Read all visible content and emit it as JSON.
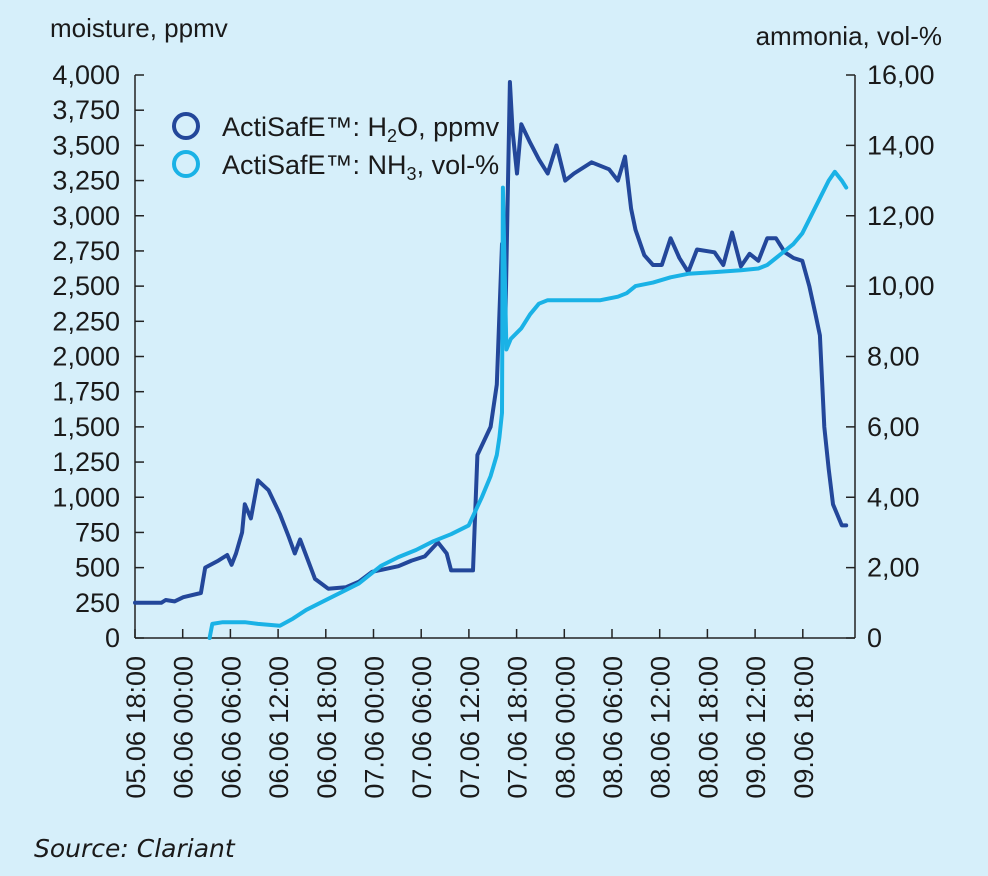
{
  "chart_data": {
    "type": "line",
    "left_axis_title": "moisture, ppmv",
    "right_axis_title": "ammonia, vol-%",
    "y_left_ticks": [
      "0",
      "250",
      "500",
      "750",
      "1,000",
      "1,250",
      "1,500",
      "1,750",
      "2,000",
      "2,250",
      "2,500",
      "2,750",
      "3,000",
      "3,250",
      "3,500",
      "3,750",
      "4,000"
    ],
    "y_right_ticks": [
      "0",
      "2,00",
      "4,00",
      "6,00",
      "8,00",
      "10,00",
      "12,00",
      "14,00",
      "16,00"
    ],
    "x_ticks": [
      "05.06 18:00",
      "06.06 00:00",
      "06.06 06:00",
      "06.06 12:00",
      "06.06 18:00",
      "07.06 00:00",
      "07.06 06:00",
      "07.06 12:00",
      "07.06 18:00",
      "08.06 00:00",
      "08.06 06:00",
      "08.06 12:00",
      "08.06 18:00",
      "09.06 12:00",
      "09.06 18:00"
    ],
    "ylim_left": [
      0,
      4000
    ],
    "ylim_right": [
      0,
      16
    ],
    "grid": false,
    "legend_position": "top-left",
    "colors": {
      "h2o": "#23479a",
      "nh3": "#1ab2e6",
      "background": "#d6effa"
    },
    "series": [
      {
        "key": "h2o",
        "legend_prefix": "ActiSafE™: H",
        "legend_sub": "2",
        "legend_suffix": "O, ppmv",
        "axis": "left",
        "points": [
          [
            0,
            250
          ],
          [
            3,
            250
          ],
          [
            3.5,
            270
          ],
          [
            4.5,
            260
          ],
          [
            5.5,
            290
          ],
          [
            7.5,
            320
          ],
          [
            8,
            500
          ],
          [
            9.5,
            550
          ],
          [
            10.5,
            590
          ],
          [
            11,
            520
          ],
          [
            11.5,
            600
          ],
          [
            12.2,
            750
          ],
          [
            12.5,
            950
          ],
          [
            13.2,
            850
          ],
          [
            14,
            1120
          ],
          [
            15.2,
            1050
          ],
          [
            16.5,
            880
          ],
          [
            17.5,
            720
          ],
          [
            18.2,
            600
          ],
          [
            18.8,
            700
          ],
          [
            20.5,
            420
          ],
          [
            22,
            350
          ],
          [
            24,
            360
          ],
          [
            25.5,
            400
          ],
          [
            27,
            470
          ],
          [
            30,
            510
          ],
          [
            31.5,
            550
          ],
          [
            33,
            580
          ],
          [
            34.5,
            680
          ],
          [
            35.5,
            600
          ],
          [
            36,
            480
          ],
          [
            38.5,
            480
          ],
          [
            39,
            1300
          ],
          [
            40.5,
            1500
          ],
          [
            41.2,
            1800
          ],
          [
            41.8,
            2800
          ],
          [
            42.2,
            2300
          ],
          [
            42.7,
            3950
          ],
          [
            43,
            3600
          ],
          [
            43.5,
            3300
          ],
          [
            44,
            3650
          ],
          [
            45,
            3520
          ],
          [
            46,
            3400
          ],
          [
            47,
            3300
          ],
          [
            48,
            3500
          ],
          [
            49,
            3250
          ],
          [
            50,
            3300
          ],
          [
            52,
            3380
          ],
          [
            54,
            3330
          ],
          [
            55,
            3250
          ],
          [
            55.8,
            3420
          ],
          [
            56.5,
            3050
          ],
          [
            57,
            2900
          ],
          [
            58,
            2720
          ],
          [
            59,
            2650
          ],
          [
            60,
            2650
          ],
          [
            61,
            2840
          ],
          [
            62,
            2700
          ],
          [
            63,
            2600
          ],
          [
            64,
            2760
          ],
          [
            66,
            2740
          ],
          [
            67,
            2650
          ],
          [
            68,
            2880
          ],
          [
            69,
            2640
          ],
          [
            70,
            2730
          ],
          [
            71,
            2680
          ],
          [
            72,
            2840
          ],
          [
            73,
            2840
          ],
          [
            74,
            2740
          ],
          [
            75,
            2700
          ],
          [
            76,
            2680
          ],
          [
            76.8,
            2500
          ],
          [
            77.5,
            2300
          ],
          [
            78,
            2150
          ],
          [
            78.5,
            1500
          ],
          [
            79,
            1200
          ],
          [
            79.5,
            950
          ],
          [
            80.5,
            800
          ],
          [
            81,
            800
          ]
        ]
      },
      {
        "key": "nh3",
        "legend_prefix": "ActiSafE™: NH",
        "legend_sub": "3",
        "legend_suffix": ", vol-%",
        "axis": "right",
        "points": [
          [
            8.5,
            0.0
          ],
          [
            8.8,
            0.4
          ],
          [
            10,
            0.45
          ],
          [
            12.5,
            0.45
          ],
          [
            14,
            0.4
          ],
          [
            16.5,
            0.35
          ],
          [
            18,
            0.55
          ],
          [
            19.5,
            0.8
          ],
          [
            21.5,
            1.05
          ],
          [
            23.5,
            1.3
          ],
          [
            25.5,
            1.55
          ],
          [
            27,
            1.85
          ],
          [
            28,
            2.05
          ],
          [
            30,
            2.3
          ],
          [
            32,
            2.5
          ],
          [
            34,
            2.75
          ],
          [
            36,
            2.95
          ],
          [
            38,
            3.2
          ],
          [
            39.5,
            4.0
          ],
          [
            40.5,
            4.6
          ],
          [
            41.2,
            5.2
          ],
          [
            41.5,
            5.7
          ],
          [
            41.8,
            6.4
          ],
          [
            41.9,
            12.8
          ],
          [
            42.3,
            8.2
          ],
          [
            42.8,
            8.5
          ],
          [
            44,
            8.8
          ],
          [
            45,
            9.2
          ],
          [
            46,
            9.5
          ],
          [
            47,
            9.6
          ],
          [
            50,
            9.6
          ],
          [
            53,
            9.6
          ],
          [
            55,
            9.7
          ],
          [
            56,
            9.8
          ],
          [
            57,
            10.0
          ],
          [
            59,
            10.1
          ],
          [
            61,
            10.25
          ],
          [
            63,
            10.35
          ],
          [
            66,
            10.4
          ],
          [
            69,
            10.45
          ],
          [
            71,
            10.5
          ],
          [
            72,
            10.6
          ],
          [
            73,
            10.8
          ],
          [
            74,
            11.0
          ],
          [
            75,
            11.2
          ],
          [
            76,
            11.5
          ],
          [
            77,
            12.0
          ],
          [
            78,
            12.5
          ],
          [
            79,
            13.0
          ],
          [
            79.7,
            13.25
          ],
          [
            80.5,
            13.0
          ],
          [
            81,
            12.8
          ]
        ]
      }
    ]
  },
  "source": "Source: Clariant"
}
